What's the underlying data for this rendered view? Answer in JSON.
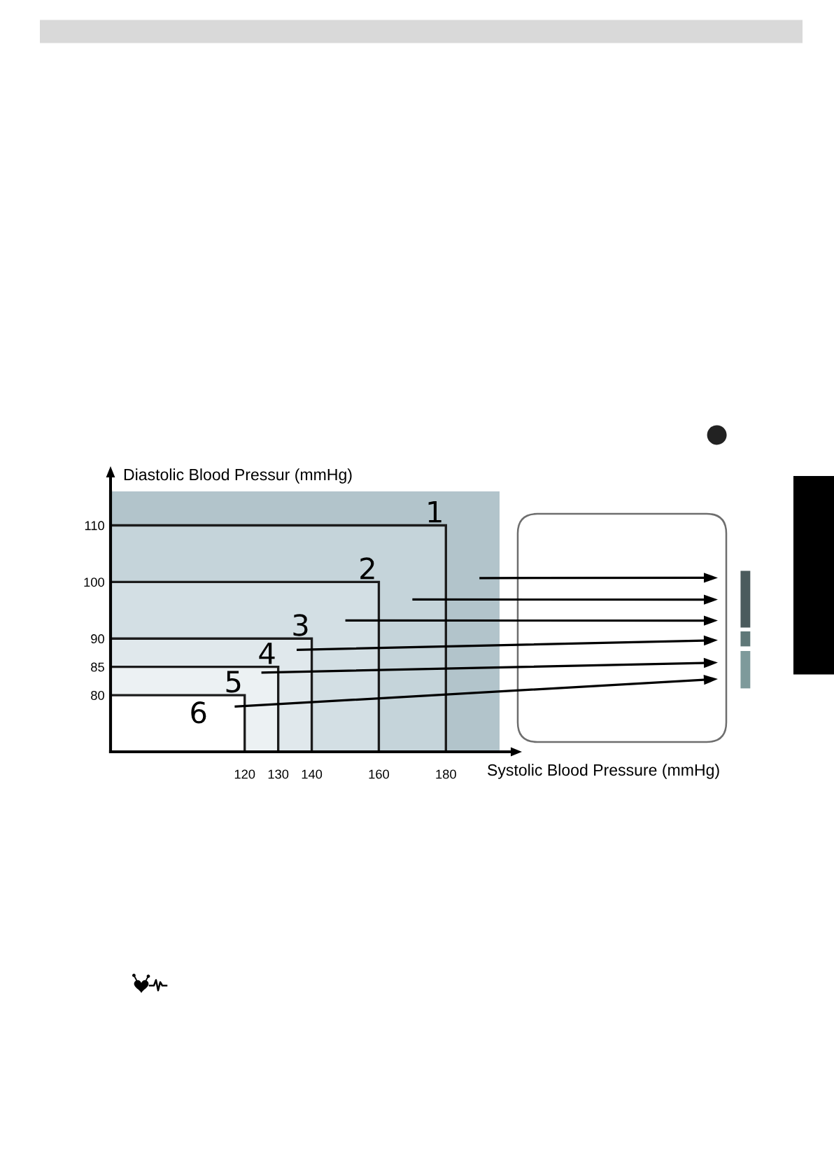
{
  "chart_data": {
    "type": "area",
    "xlabel": "Systolic Blood Pressure (mmHg)",
    "ylabel": "Diastolic Blood Pressur (mmHg)",
    "xlim": [
      80,
      196
    ],
    "ylim": [
      70,
      116
    ],
    "xticks": [
      120,
      130,
      140,
      160,
      180
    ],
    "yticks": [
      80,
      85,
      90,
      100,
      110
    ],
    "series": [
      {
        "color": "#c5d4da",
        "x": [
          80,
          180
        ],
        "values": [
          110,
          110
        ]
      },
      {
        "color": "#d3dfe4",
        "x": [
          80,
          160
        ],
        "values": [
          100,
          100
        ]
      },
      {
        "color": "#e0e8ec",
        "x": [
          80,
          140
        ],
        "values": [
          90,
          90
        ]
      },
      {
        "color": "#ecf1f3",
        "x": [
          80,
          130
        ],
        "values": [
          85,
          85
        ]
      },
      {
        "color": "#ffffff",
        "x": [
          80,
          120
        ],
        "values": [
          80,
          80
        ]
      }
    ],
    "annotations": [
      {
        "text": "1",
        "x": 180,
        "y": 110
      },
      {
        "text": "2",
        "x": 160,
        "y": 100
      },
      {
        "text": "3",
        "x": 140,
        "y": 90
      },
      {
        "text": "4",
        "x": 130,
        "y": 85
      },
      {
        "text": "5",
        "x": 120,
        "y": 80
      },
      "6"
    ]
  }
}
